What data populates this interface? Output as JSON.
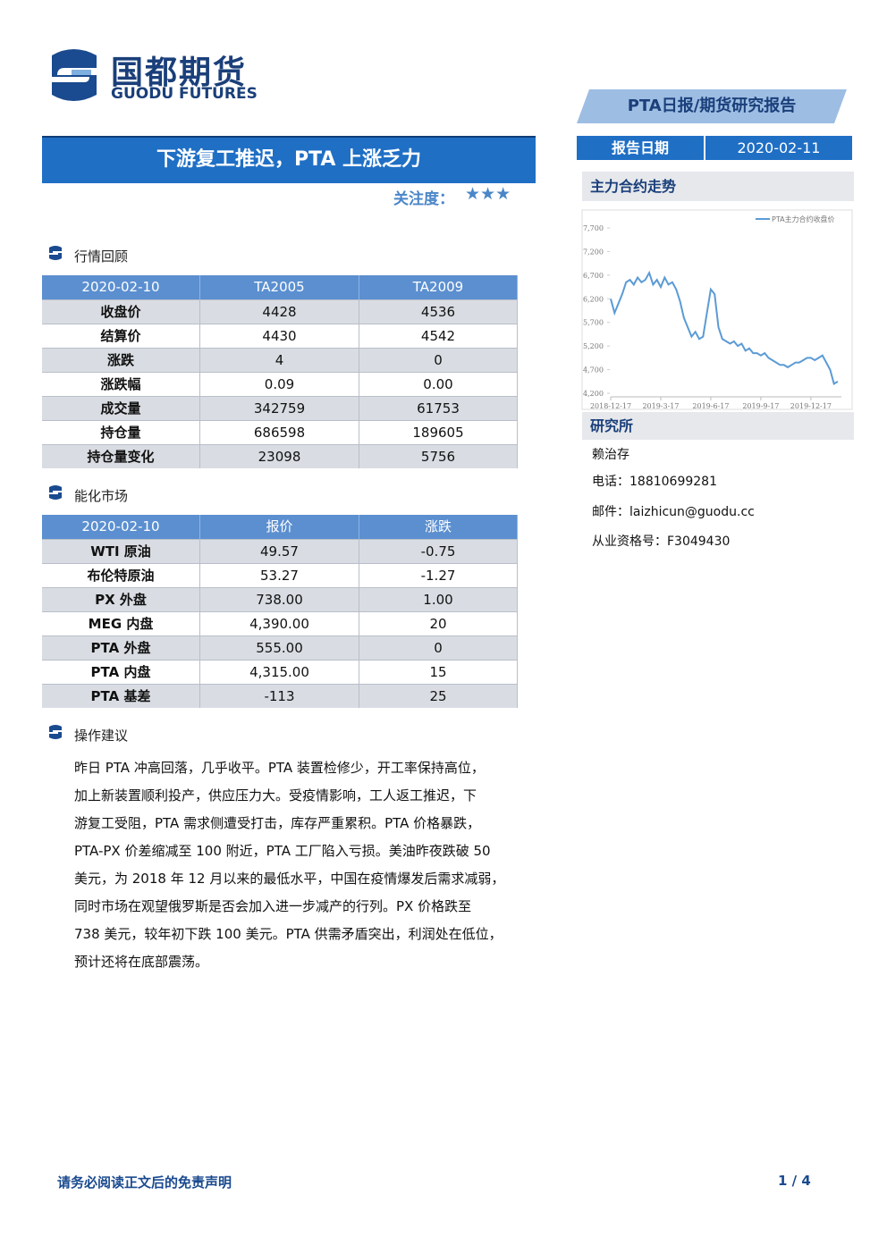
{
  "header": {
    "logo_cn": "国都期货",
    "logo_en": "GUODU FUTURES",
    "report_type": "PTA日报/期货研究报告",
    "title": "下游复工推迟，PTA 上涨乏力",
    "attention_label": "关注度：",
    "attention_stars": "★★★",
    "report_date_label": "报告日期",
    "report_date": "2020-02-11"
  },
  "sections": [
    {
      "title": "行情回顾",
      "table": {
        "header": [
          "2020-02-10",
          "TA2005",
          "TA2009"
        ],
        "rows": [
          [
            "收盘价",
            "4428",
            "4536"
          ],
          [
            "结算价",
            "4430",
            "4542"
          ],
          [
            "涨跌",
            "4",
            "0"
          ],
          [
            "涨跌幅",
            "0.09",
            "0.00"
          ],
          [
            "成交量",
            "342759",
            "61753"
          ],
          [
            "持仓量",
            "686598",
            "189605"
          ],
          [
            "持仓量变化",
            "23098",
            "5756"
          ]
        ]
      }
    },
    {
      "title": "能化市场",
      "table": {
        "header": [
          "2020-02-10",
          "报价",
          "涨跌"
        ],
        "rows": [
          [
            "WTI 原油",
            "49.57",
            "-0.75"
          ],
          [
            "布伦特原油",
            "53.27",
            "-1.27"
          ],
          [
            "PX 外盘",
            "738.00",
            "1.00"
          ],
          [
            "MEG 内盘",
            "4,390.00",
            "20"
          ],
          [
            "PTA 外盘",
            "555.00",
            "0"
          ],
          [
            "PTA 内盘",
            "4,315.00",
            "15"
          ],
          [
            "PTA 基差",
            "-113",
            "25"
          ]
        ]
      }
    },
    {
      "title": "操作建议",
      "lines": [
        "昨日 PTA 冲高回落，几乎收平。PTA 装置检修少，开工率保持高位，",
        "加上新装置顺利投产，供应压力大。受疫情影响，工人返工推迟，下",
        "游复工受阻，PTA 需求侧遭受打击，库存严重累积。PTA 价格暴跌，",
        "PTA-PX 价差缩减至 100 附近，PTA 工厂陷入亏损。美油昨夜跌破 50",
        "美元，为 2018 年 12 月以来的最低水平，中国在疫情爆发后需求减弱，",
        "同时市场在观望俄罗斯是否会加入进一步减产的行列。PX 价格跌至",
        "738 美元，较年初下跌 100 美元。PTA 供需矛盾突出，利润处在低位，",
        "预计还将在底部震荡。"
      ]
    }
  ],
  "sidebar": {
    "chart_title": "主力合约走势",
    "research_title": "研究所",
    "analyst": "赖治存",
    "phone_label": "电话：",
    "phone": "18810699281",
    "email_label": "邮件：",
    "email": "laizhicun@guodu.cc",
    "license_label": "从业资格号：",
    "license": "F3049430"
  },
  "chart_data": {
    "type": "line",
    "legend": "upper right",
    "categories": [
      "2018-12-17",
      null,
      null,
      null,
      null,
      null,
      null,
      null,
      null,
      null,
      null,
      null,
      null,
      "2019-3-17",
      null,
      null,
      null,
      null,
      null,
      null,
      null,
      null,
      null,
      null,
      null,
      null,
      "2019-6-17",
      null,
      null,
      null,
      null,
      null,
      null,
      null,
      null,
      null,
      null,
      null,
      null,
      "2019-9-17",
      null,
      null,
      null,
      null,
      null,
      null,
      null,
      null,
      null,
      null,
      null,
      null,
      "2019-12-17",
      null,
      null,
      null,
      null,
      null,
      null,
      null
    ],
    "series": [
      {
        "name": "PTA主力合约收盘价",
        "color": "#5b9bd5",
        "values": [
          6200,
          5900,
          6100,
          6300,
          6550,
          6600,
          6500,
          6650,
          6550,
          6600,
          6750,
          6500,
          6600,
          6450,
          6650,
          6500,
          6550,
          6400,
          6150,
          5800,
          5600,
          5400,
          5500,
          5350,
          5400,
          5900,
          6400,
          6300,
          5600,
          5350,
          5300,
          5250,
          5300,
          5200,
          5250,
          5100,
          5150,
          5050,
          5050,
          5000,
          5050,
          4950,
          4900,
          4850,
          4800,
          4800,
          4750,
          4800,
          4850,
          4850,
          4900,
          4950,
          4950,
          4900,
          4950,
          5000,
          4850,
          4700,
          4400,
          4450
        ]
      }
    ],
    "ylim": [
      4200,
      7700
    ],
    "yticks": [
      {
        "value": 4200,
        "label": "4,200"
      },
      {
        "value": 4700,
        "label": "4,700"
      },
      {
        "value": 5200,
        "label": "5,200"
      },
      {
        "value": 5700,
        "label": "5,700"
      },
      {
        "value": 6200,
        "label": "6,200"
      },
      {
        "value": 6700,
        "label": "6,700"
      },
      {
        "value": 7200,
        "label": "7,200"
      },
      {
        "value": 7700,
        "label": "7,700"
      }
    ]
  },
  "footer": {
    "disclaimer": "请务必阅读正文后的免责声明",
    "page": "1 / 4"
  }
}
